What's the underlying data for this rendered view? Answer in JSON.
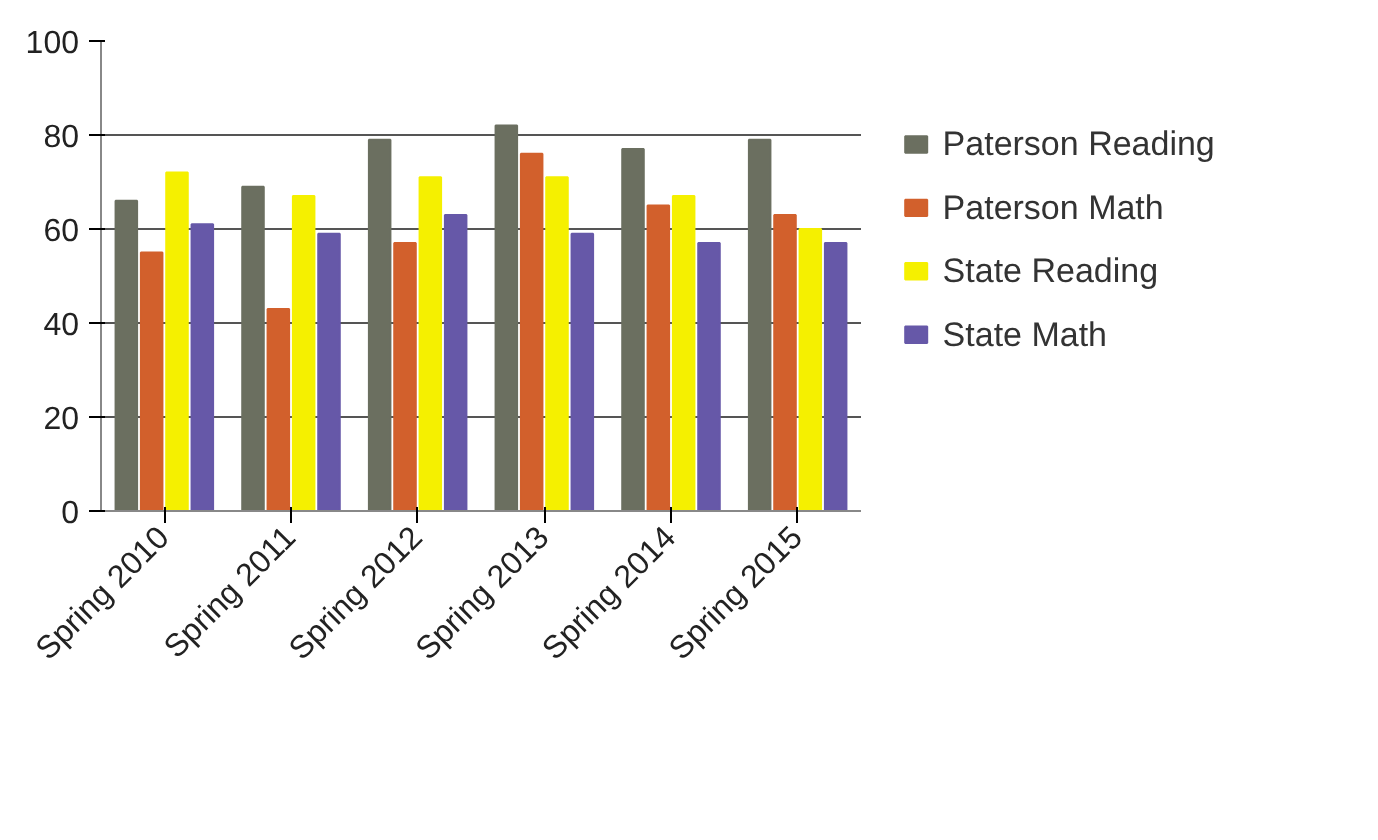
{
  "chart_data": {
    "type": "bar",
    "categories": [
      "Spring 2010",
      "Spring 2011",
      "Spring 2012",
      "Spring 2013",
      "Spring 2014",
      "Spring 2015"
    ],
    "series": [
      {
        "name": "Paterson Reading",
        "color": "#6b6f60",
        "values": [
          66,
          69,
          79,
          82,
          77,
          79
        ]
      },
      {
        "name": "Paterson Math",
        "color": "#d2602c",
        "values": [
          55,
          43,
          57,
          76,
          65,
          63
        ]
      },
      {
        "name": "State Reading",
        "color": "#f5f000",
        "values": [
          72,
          67,
          71,
          71,
          67,
          60
        ]
      },
      {
        "name": "State Math",
        "color": "#6658a8",
        "values": [
          61,
          59,
          63,
          59,
          57,
          57
        ]
      }
    ],
    "ylim": [
      0,
      100
    ],
    "yticks": [
      0,
      20,
      40,
      60,
      80,
      100
    ],
    "grid": "y",
    "legend": "right"
  }
}
